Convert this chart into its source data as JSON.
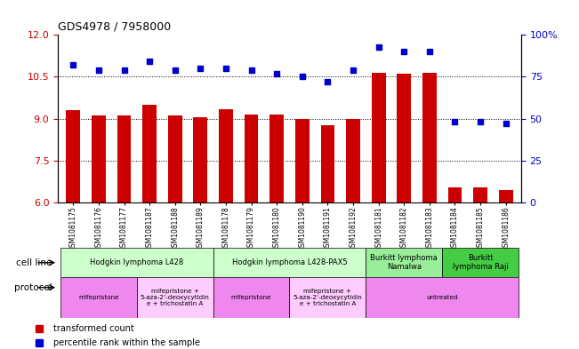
{
  "title": "GDS4978 / 7958000",
  "samples": [
    "GSM1081175",
    "GSM1081176",
    "GSM1081177",
    "GSM1081187",
    "GSM1081188",
    "GSM1081189",
    "GSM1081178",
    "GSM1081179",
    "GSM1081180",
    "GSM1081190",
    "GSM1081191",
    "GSM1081192",
    "GSM1081181",
    "GSM1081182",
    "GSM1081183",
    "GSM1081184",
    "GSM1081185",
    "GSM1081186"
  ],
  "bar_values": [
    9.3,
    9.1,
    9.1,
    9.5,
    9.1,
    9.05,
    9.35,
    9.15,
    9.15,
    9.0,
    8.75,
    9.0,
    10.65,
    10.6,
    10.65,
    6.55,
    6.55,
    6.45
  ],
  "dot_values": [
    82,
    79,
    79,
    84,
    79,
    80,
    80,
    79,
    77,
    75,
    72,
    79,
    93,
    90,
    90,
    48,
    48,
    47
  ],
  "bar_color": "#cc0000",
  "dot_color": "#0000cc",
  "ylim_left": [
    6,
    12
  ],
  "ylim_right": [
    0,
    100
  ],
  "yticks_left": [
    6,
    7.5,
    9,
    10.5,
    12
  ],
  "yticks_right": [
    0,
    25,
    50,
    75,
    100
  ],
  "cell_line_groups": [
    {
      "label": "Hodgkin lymphoma L428",
      "start": 0,
      "end": 5,
      "color": "#ccffcc"
    },
    {
      "label": "Hodgkin lymphoma L428-PAX5",
      "start": 6,
      "end": 11,
      "color": "#ccffcc"
    },
    {
      "label": "Burkitt lymphoma\nNamalwa",
      "start": 12,
      "end": 14,
      "color": "#99ee99"
    },
    {
      "label": "Burkitt\nlymphoma Raji",
      "start": 15,
      "end": 17,
      "color": "#44cc44"
    }
  ],
  "protocol_groups": [
    {
      "label": "mifepristone",
      "start": 0,
      "end": 2,
      "color": "#ee88ee"
    },
    {
      "label": "mifepristone +\n5-aza-2'-deoxycytidin\ne + trichostatin A",
      "start": 3,
      "end": 5,
      "color": "#ffccff"
    },
    {
      "label": "mifepristone",
      "start": 6,
      "end": 8,
      "color": "#ee88ee"
    },
    {
      "label": "mifepristone +\n5-aza-2'-deoxycytidin\ne + trichostatin A",
      "start": 9,
      "end": 11,
      "color": "#ffccff"
    },
    {
      "label": "untreated",
      "start": 12,
      "end": 17,
      "color": "#ee88ee"
    }
  ],
  "legend_bar_label": "transformed count",
  "legend_dot_label": "percentile rank within the sample",
  "cell_line_label": "cell line",
  "protocol_label": "protocol",
  "tick_label_color_left": "#cc0000",
  "tick_label_color_right": "#0000cc"
}
